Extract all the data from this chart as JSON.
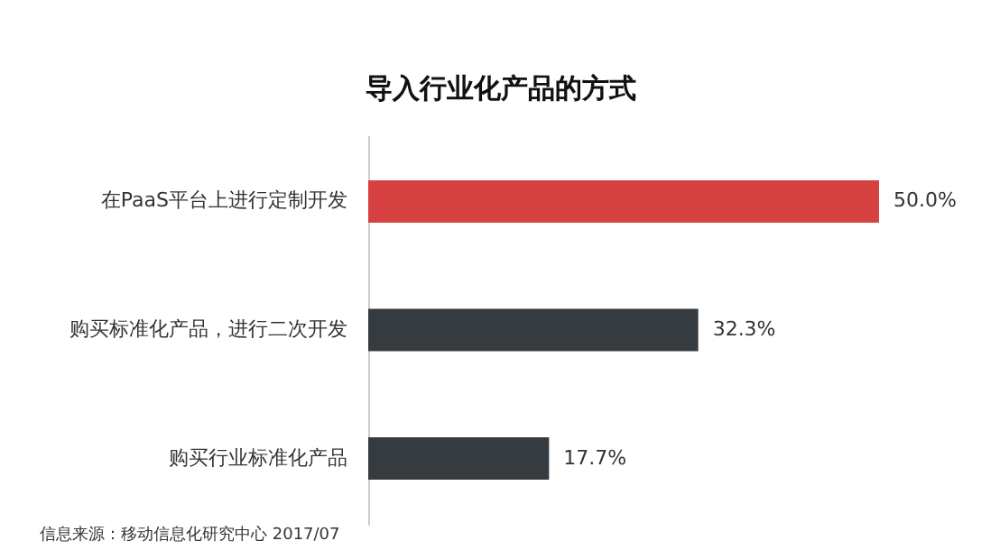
{
  "chart_data": {
    "type": "bar",
    "orientation": "horizontal",
    "title": "导入行业化产品的方式",
    "categories": [
      "在PaaS平台上进行定制开发",
      "购买标准化产品，进行二次开发",
      "购买行业标准化产品"
    ],
    "values": [
      50.0,
      32.3,
      17.7
    ],
    "colors": [
      "#d64141",
      "#363b40",
      "#363b40"
    ],
    "value_labels": [
      "50.0%",
      "32.3%",
      "17.7%"
    ],
    "xlim": [
      0,
      50
    ],
    "tick_labels": "y",
    "annotations": [
      "信息来源：移动信息化研究中心  2017/07"
    ]
  }
}
